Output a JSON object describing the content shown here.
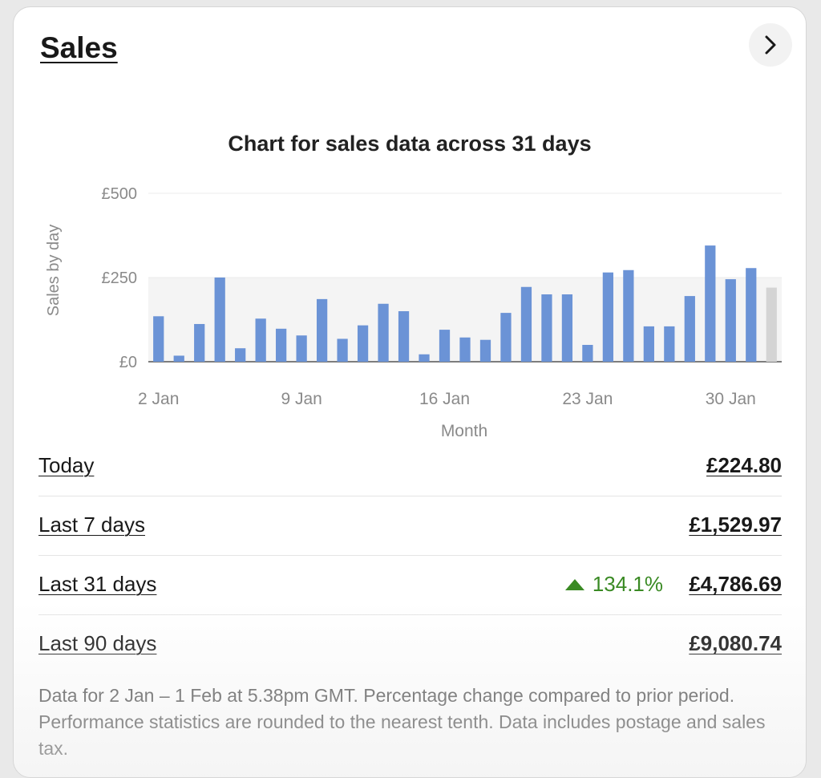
{
  "card": {
    "title": "Sales"
  },
  "chart_data": {
    "type": "bar",
    "title": "Chart for sales data across 31 days",
    "xlabel": "Month",
    "ylabel": "Sales by day",
    "ylim": [
      0,
      500
    ],
    "yticks": [
      "£0",
      "£250",
      "£500"
    ],
    "ytick_values": [
      0,
      250,
      500
    ],
    "xtick_labels": [
      {
        "label": "2 Jan",
        "index": 0
      },
      {
        "label": "9 Jan",
        "index": 7
      },
      {
        "label": "16 Jan",
        "index": 14
      },
      {
        "label": "23 Jan",
        "index": 21
      },
      {
        "label": "30 Jan",
        "index": 28
      }
    ],
    "categories": [
      "2 Jan",
      "3 Jan",
      "4 Jan",
      "5 Jan",
      "6 Jan",
      "7 Jan",
      "8 Jan",
      "9 Jan",
      "10 Jan",
      "11 Jan",
      "12 Jan",
      "13 Jan",
      "14 Jan",
      "15 Jan",
      "16 Jan",
      "17 Jan",
      "18 Jan",
      "19 Jan",
      "20 Jan",
      "21 Jan",
      "22 Jan",
      "23 Jan",
      "24 Jan",
      "25 Jan",
      "26 Jan",
      "27 Jan",
      "28 Jan",
      "29 Jan",
      "30 Jan",
      "31 Jan",
      "1 Feb"
    ],
    "values": [
      135,
      18,
      112,
      250,
      40,
      128,
      98,
      78,
      186,
      68,
      108,
      172,
      150,
      22,
      95,
      72,
      65,
      145,
      222,
      200,
      200,
      50,
      265,
      272,
      105,
      105,
      195,
      345,
      245,
      278,
      220
    ],
    "bar_color": "#6b93d6",
    "today_bar_color": "#d4d4d4",
    "grid": true
  },
  "stats": [
    {
      "label": "Today",
      "value": "£224.80"
    },
    {
      "label": "Last 7 days",
      "value": "£1,529.97"
    },
    {
      "label": "Last 31 days",
      "value": "£4,786.69",
      "change": "134.1%",
      "change_direction": "up",
      "change_color": "#3a8a24"
    },
    {
      "label": "Last 90 days",
      "value": "£9,080.74"
    }
  ],
  "footnote": "Data for 2 Jan – 1 Feb at 5.38pm GMT. Percentage change compared to prior period. Performance statistics are rounded to the nearest tenth. Data includes postage and sales tax."
}
